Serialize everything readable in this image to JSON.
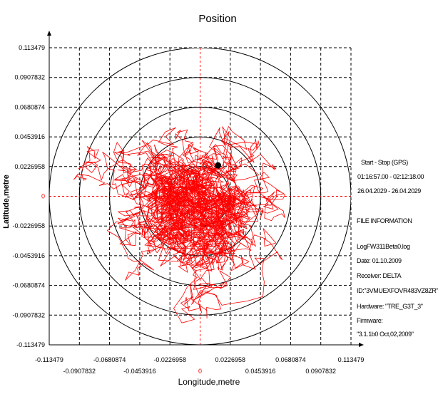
{
  "chart_data": {
    "type": "scatter",
    "title": "Position",
    "xlabel": "Longitude,metre",
    "ylabel": "Latitude,metre",
    "xlim": [
      -0.113479,
      0.113479
    ],
    "ylim": [
      -0.113479,
      0.113479
    ],
    "grid": true,
    "x_tick_labels": [
      "-0.113479",
      "-0.0907832",
      "-0.0680874",
      "-0.0453916",
      "-0.0226958",
      "0",
      "0.0226958",
      "0.0453916",
      "0.0680874",
      "0.0907832",
      "0.113479"
    ],
    "y_tick_labels": [
      "0.113479",
      "0.0907832",
      "0.0680874",
      "0.0453916",
      "0.0226958",
      "0",
      "-0.0226958",
      "-0.0453916",
      "-0.0680874",
      "-0.0907832",
      "-0.113479"
    ],
    "circle_radii": [
      0.0226958,
      0.0453916,
      0.0680874,
      0.0907832,
      0.113479
    ],
    "colors": {
      "track": "#ff0000",
      "grid": "#000000",
      "circles": "#000000",
      "axes_zero": "#ff0000",
      "marker": "#000000"
    },
    "current_position": {
      "x": 0.0135,
      "y": 0.0236
    },
    "track_centroid": {
      "x": 0.0,
      "y": -0.004
    },
    "track_spread": {
      "x": 0.021,
      "y": 0.021
    }
  },
  "info": {
    "session_heading": "Start - Stop (GPS)",
    "time_range": "01:16:57.00 - 02:12:18.00",
    "date_range": "26.04.2029 - 26.04.2029",
    "file_heading": "FILE INFORMATION",
    "file_name": "LogFW311Beta0.log",
    "date": "Date: 01.10.2009",
    "receiver": "Receiver: DELTA",
    "receiver_id": "ID:\"3VMUEXFOVR483VZ8ZR\"",
    "hardware": "Hardware: \"TRE_G3T_3\"",
    "firmware_label": "Firmware:",
    "firmware_value": "\"3.1.1b0 Oct,02,2009\""
  }
}
